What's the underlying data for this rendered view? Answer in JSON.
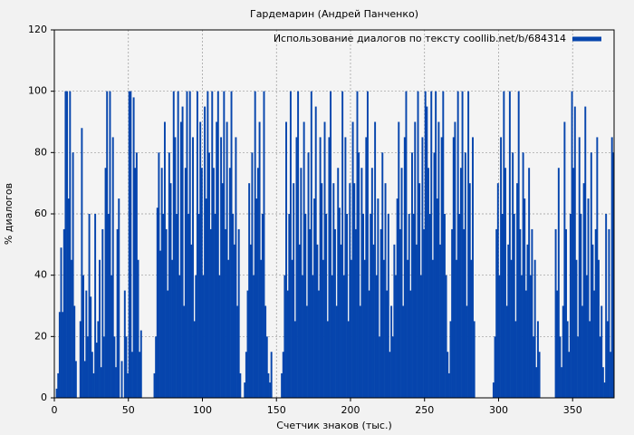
{
  "chart_data": {
    "type": "bar",
    "title": "Гардемарин (Андрей Панченко)",
    "x_label": "Счетчик знаков (тыс.)",
    "y_label": "% диалогов",
    "legend_position": "upper right",
    "grid": true,
    "xlim": [
      0,
      378
    ],
    "xticks": [
      0,
      50,
      100,
      150,
      200,
      250,
      300,
      350
    ],
    "ylim": [
      0,
      120
    ],
    "yticks": [
      0,
      20,
      40,
      60,
      80,
      100,
      120
    ],
    "x": [
      0,
      1,
      2,
      3,
      4,
      5,
      6,
      7,
      8,
      9,
      10,
      11,
      12,
      13,
      14,
      15,
      16,
      17,
      18,
      19,
      20,
      21,
      22,
      23,
      24,
      25,
      26,
      27,
      28,
      29,
      30,
      31,
      32,
      33,
      34,
      35,
      36,
      37,
      38,
      39,
      40,
      41,
      42,
      43,
      44,
      45,
      46,
      47,
      48,
      49,
      50,
      51,
      52,
      53,
      54,
      55,
      56,
      57,
      58,
      59,
      60,
      61,
      62,
      63,
      64,
      65,
      66,
      67,
      68,
      69,
      70,
      71,
      72,
      73,
      74,
      75,
      76,
      77,
      78,
      79,
      80,
      81,
      82,
      83,
      84,
      85,
      86,
      87,
      88,
      89,
      90,
      91,
      92,
      93,
      94,
      95,
      96,
      97,
      98,
      99,
      100,
      101,
      102,
      103,
      104,
      105,
      106,
      107,
      108,
      109,
      110,
      111,
      112,
      113,
      114,
      115,
      116,
      117,
      118,
      119,
      120,
      121,
      122,
      123,
      124,
      125,
      126,
      127,
      128,
      129,
      130,
      131,
      132,
      133,
      134,
      135,
      136,
      137,
      138,
      139,
      140,
      141,
      142,
      143,
      144,
      145,
      146,
      147,
      148,
      149,
      150,
      151,
      152,
      153,
      154,
      155,
      156,
      157,
      158,
      159,
      160,
      161,
      162,
      163,
      164,
      165,
      166,
      167,
      168,
      169,
      170,
      171,
      172,
      173,
      174,
      175,
      176,
      177,
      178,
      179,
      180,
      181,
      182,
      183,
      184,
      185,
      186,
      187,
      188,
      189,
      190,
      191,
      192,
      193,
      194,
      195,
      196,
      197,
      198,
      199,
      200,
      201,
      202,
      203,
      204,
      205,
      206,
      207,
      208,
      209,
      210,
      211,
      212,
      213,
      214,
      215,
      216,
      217,
      218,
      219,
      220,
      221,
      222,
      223,
      224,
      225,
      226,
      227,
      228,
      229,
      230,
      231,
      232,
      233,
      234,
      235,
      236,
      237,
      238,
      239,
      240,
      241,
      242,
      243,
      244,
      245,
      246,
      247,
      248,
      249,
      250,
      251,
      252,
      253,
      254,
      255,
      256,
      257,
      258,
      259,
      260,
      261,
      262,
      263,
      264,
      265,
      266,
      267,
      268,
      269,
      270,
      271,
      272,
      273,
      274,
      275,
      276,
      277,
      278,
      279,
      280,
      281,
      282,
      283,
      284,
      285,
      286,
      287,
      288,
      289,
      290,
      291,
      292,
      293,
      294,
      295,
      296,
      297,
      298,
      299,
      300,
      301,
      302,
      303,
      304,
      305,
      306,
      307,
      308,
      309,
      310,
      311,
      312,
      313,
      314,
      315,
      316,
      317,
      318,
      319,
      320,
      321,
      322,
      323,
      324,
      325,
      326,
      327,
      328,
      329,
      330,
      331,
      332,
      333,
      334,
      335,
      336,
      337,
      338,
      339,
      340,
      341,
      342,
      343,
      344,
      345,
      346,
      347,
      348,
      349,
      350,
      351,
      352,
      353,
      354,
      355,
      356,
      357,
      358,
      359,
      360,
      361,
      362,
      363,
      364,
      365,
      366,
      367,
      368,
      369,
      370,
      371,
      372,
      373,
      374,
      375,
      376,
      377
    ],
    "series": [
      {
        "name": "Использование диалогов по тексту coollib.net/b/684314",
        "color": "#0645ad",
        "values": [
          0,
          3,
          8,
          28,
          49,
          28,
          55,
          100,
          100,
          65,
          100,
          45,
          80,
          30,
          12,
          0,
          0,
          25,
          88,
          40,
          12,
          35,
          20,
          60,
          33,
          15,
          8,
          60,
          18,
          25,
          45,
          10,
          55,
          20,
          75,
          100,
          60,
          100,
          40,
          85,
          20,
          10,
          55,
          65,
          0,
          12,
          0,
          35,
          20,
          8,
          100,
          100,
          15,
          98,
          75,
          80,
          45,
          15,
          22,
          0,
          0,
          0,
          0,
          0,
          0,
          0,
          0,
          8,
          20,
          62,
          80,
          48,
          75,
          60,
          90,
          55,
          35,
          80,
          70,
          45,
          100,
          85,
          60,
          100,
          40,
          90,
          95,
          30,
          75,
          100,
          60,
          100,
          50,
          85,
          25,
          40,
          100,
          60,
          90,
          75,
          40,
          95,
          65,
          100,
          80,
          55,
          100,
          75,
          60,
          90,
          100,
          40,
          85,
          70,
          100,
          55,
          90,
          45,
          75,
          100,
          60,
          50,
          85,
          30,
          55,
          8,
          0,
          0,
          5,
          15,
          35,
          70,
          50,
          80,
          40,
          100,
          65,
          75,
          90,
          45,
          60,
          100,
          30,
          20,
          8,
          5,
          15,
          0,
          0,
          0,
          0,
          0,
          0,
          8,
          15,
          40,
          90,
          35,
          60,
          100,
          45,
          70,
          25,
          85,
          100,
          50,
          75,
          40,
          90,
          60,
          30,
          80,
          55,
          100,
          40,
          65,
          95,
          50,
          35,
          85,
          70,
          45,
          90,
          60,
          25,
          85,
          100,
          40,
          70,
          55,
          30,
          75,
          62,
          50,
          100,
          40,
          85,
          60,
          25,
          70,
          45,
          90,
          70,
          55,
          100,
          80,
          30,
          75,
          60,
          45,
          85,
          100,
          35,
          60,
          75,
          50,
          90,
          40,
          65,
          20,
          55,
          80,
          45,
          70,
          35,
          60,
          15,
          30,
          20,
          50,
          40,
          65,
          90,
          55,
          75,
          30,
          85,
          100,
          45,
          60,
          35,
          80,
          60,
          90,
          50,
          100,
          70,
          40,
          85,
          55,
          100,
          95,
          75,
          60,
          100,
          45,
          80,
          100,
          65,
          90,
          50,
          85,
          100,
          60,
          40,
          15,
          8,
          25,
          55,
          85,
          90,
          45,
          100,
          60,
          75,
          100,
          55,
          80,
          30,
          100,
          70,
          45,
          85,
          25,
          0,
          0,
          0,
          0,
          0,
          0,
          0,
          0,
          0,
          0,
          0,
          0,
          5,
          20,
          55,
          70,
          40,
          85,
          60,
          100,
          75,
          30,
          50,
          100,
          45,
          80,
          60,
          25,
          70,
          100,
          55,
          40,
          80,
          65,
          35,
          50,
          75,
          40,
          55,
          20,
          45,
          10,
          25,
          15,
          0,
          0,
          0,
          0,
          0,
          0,
          0,
          0,
          0,
          0,
          55,
          35,
          75,
          20,
          10,
          30,
          90,
          55,
          25,
          15,
          60,
          100,
          75,
          95,
          45,
          20,
          85,
          60,
          30,
          70,
          95,
          40,
          65,
          25,
          80,
          50,
          35,
          55,
          85,
          45,
          20,
          30,
          10,
          5,
          60,
          25,
          55,
          15,
          85,
          80
        ]
      }
    ]
  }
}
